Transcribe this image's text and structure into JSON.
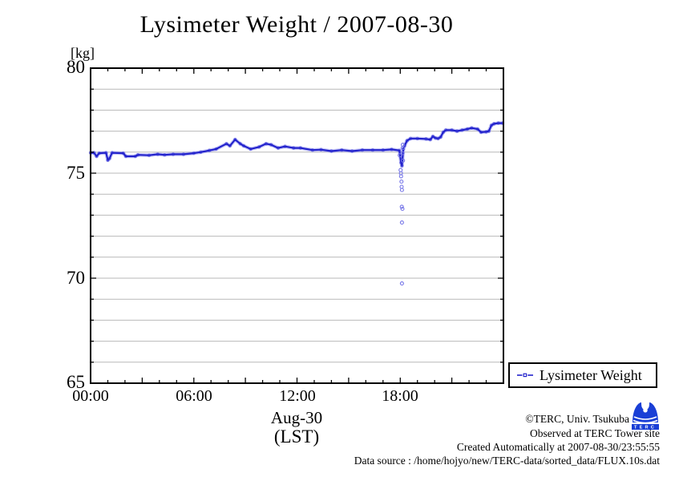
{
  "title": "Lysimeter Weight / 2007-08-30",
  "y_unit": "[kg]",
  "y_axis": {
    "labels": [
      "80",
      "75",
      "70",
      "65"
    ]
  },
  "x_axis": {
    "labels": [
      "00:00",
      "06:00",
      "12:00",
      "18:00"
    ],
    "date_label": "Aug-30",
    "tz_label": "(LST)"
  },
  "legend": {
    "label": "Lysimeter Weight"
  },
  "footer": {
    "lines": [
      "©TERC, Univ. Tsukuba",
      "Observed at TERC Tower site",
      "Created Automatically at 2007-08-30/23:55:55",
      "Data source : /home/hojyo/new/TERC-data/sorted_data/FLUX.10s.dat"
    ]
  },
  "logo": {
    "text": "TERC"
  },
  "colors": {
    "line": "#2222cc",
    "marker": "#7777e8",
    "marker_halo": "#9a9af0",
    "grid": "#b9b9b9",
    "axis": "#000000",
    "logo_blue": "#1a3fd6"
  },
  "chart_data": {
    "type": "line",
    "title": "Lysimeter Weight / 2007-08-30",
    "xlabel": "Aug-30 (LST)",
    "ylabel": "[kg]",
    "xlim_hours": [
      0,
      24
    ],
    "ylim": [
      65,
      80
    ],
    "x_tick_labeled_hours": [
      0,
      6,
      12,
      18
    ],
    "x_minor_tick_hours": 1,
    "y_tick_labeled": [
      65,
      70,
      75,
      80
    ],
    "y_minor_tick": 1,
    "grid": "horizontal only, every 1 kg, light gray",
    "legend_position": "outside-bottom-right",
    "series": [
      {
        "name": "Lysimeter Weight",
        "points": [
          [
            0.0,
            75.97
          ],
          [
            0.2,
            75.97
          ],
          [
            0.35,
            75.8
          ],
          [
            0.5,
            75.95
          ],
          [
            0.9,
            75.97
          ],
          [
            1.0,
            75.62
          ],
          [
            1.1,
            75.7
          ],
          [
            1.25,
            75.97
          ],
          [
            1.9,
            75.95
          ],
          [
            2.05,
            75.8
          ],
          [
            2.6,
            75.8
          ],
          [
            2.75,
            75.87
          ],
          [
            3.4,
            75.85
          ],
          [
            3.9,
            75.9
          ],
          [
            4.3,
            75.87
          ],
          [
            4.8,
            75.9
          ],
          [
            5.4,
            75.9
          ],
          [
            6.0,
            75.95
          ],
          [
            6.4,
            76.0
          ],
          [
            6.9,
            76.08
          ],
          [
            7.3,
            76.15
          ],
          [
            7.9,
            76.4
          ],
          [
            8.1,
            76.3
          ],
          [
            8.4,
            76.6
          ],
          [
            8.7,
            76.4
          ],
          [
            8.9,
            76.3
          ],
          [
            9.3,
            76.15
          ],
          [
            9.8,
            76.25
          ],
          [
            10.2,
            76.4
          ],
          [
            10.5,
            76.35
          ],
          [
            10.9,
            76.2
          ],
          [
            11.3,
            76.27
          ],
          [
            11.8,
            76.2
          ],
          [
            12.2,
            76.2
          ],
          [
            12.9,
            76.1
          ],
          [
            13.4,
            76.12
          ],
          [
            14.0,
            76.05
          ],
          [
            14.6,
            76.1
          ],
          [
            15.2,
            76.05
          ],
          [
            15.8,
            76.1
          ],
          [
            16.4,
            76.1
          ],
          [
            17.0,
            76.1
          ],
          [
            17.5,
            76.13
          ],
          [
            17.95,
            76.08
          ],
          [
            18.05,
            75.5
          ],
          [
            18.1,
            75.35
          ],
          [
            18.18,
            76.15
          ],
          [
            18.25,
            76.3
          ],
          [
            18.4,
            76.55
          ],
          [
            18.6,
            76.65
          ],
          [
            19.0,
            76.65
          ],
          [
            19.5,
            76.63
          ],
          [
            19.75,
            76.6
          ],
          [
            19.9,
            76.75
          ],
          [
            20.05,
            76.67
          ],
          [
            20.2,
            76.65
          ],
          [
            20.35,
            76.72
          ],
          [
            20.5,
            76.95
          ],
          [
            20.65,
            77.05
          ],
          [
            21.0,
            77.05
          ],
          [
            21.3,
            77.0
          ],
          [
            21.6,
            77.05
          ],
          [
            21.9,
            77.1
          ],
          [
            22.15,
            77.15
          ],
          [
            22.5,
            77.1
          ],
          [
            22.7,
            76.95
          ],
          [
            23.0,
            76.97
          ],
          [
            23.15,
            77.0
          ],
          [
            23.3,
            77.28
          ],
          [
            23.45,
            77.35
          ],
          [
            23.7,
            77.38
          ],
          [
            23.95,
            77.38
          ]
        ]
      }
    ],
    "outliers": [
      [
        17.97,
        75.85
      ],
      [
        18.02,
        75.15
      ],
      [
        18.04,
        75.0
      ],
      [
        18.05,
        74.85
      ],
      [
        18.07,
        74.6
      ],
      [
        18.08,
        74.35
      ],
      [
        18.1,
        74.2
      ],
      [
        18.09,
        73.4
      ],
      [
        18.13,
        73.3
      ],
      [
        18.1,
        72.65
      ],
      [
        18.1,
        69.75
      ],
      [
        18.15,
        76.35
      ],
      [
        18.14,
        76.2
      ],
      [
        18.13,
        75.95
      ],
      [
        18.16,
        75.6
      ]
    ]
  }
}
